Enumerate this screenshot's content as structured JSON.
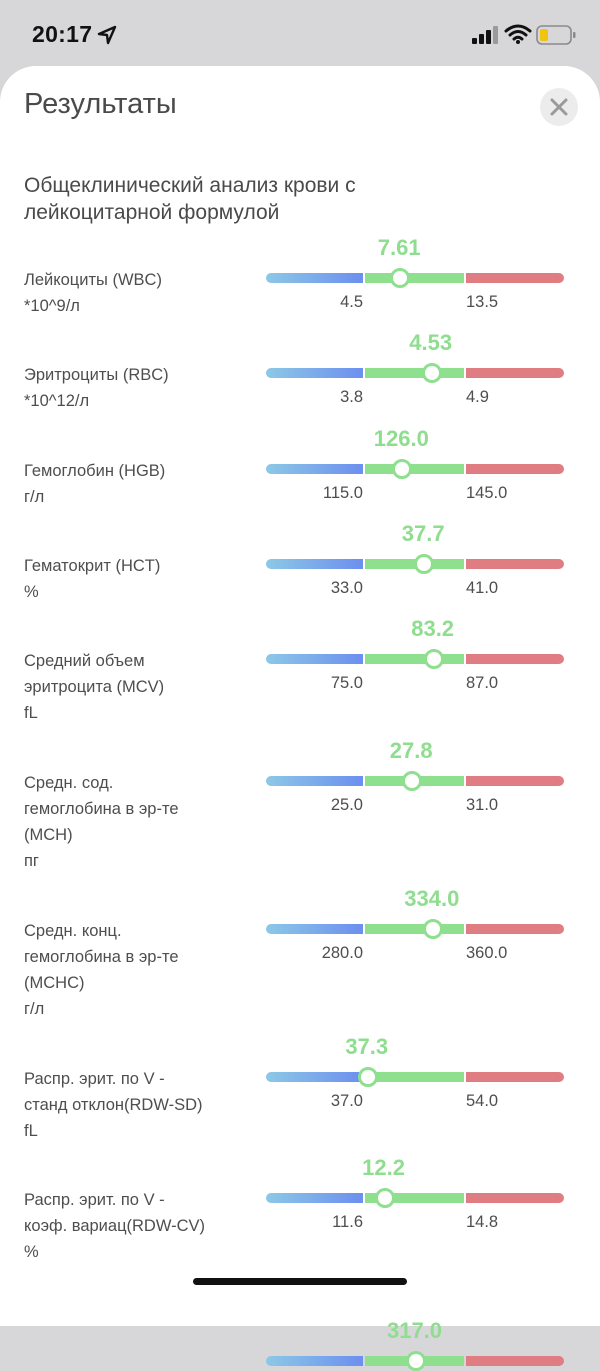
{
  "status": {
    "time": "20:17"
  },
  "sheet": {
    "title": "Результаты",
    "section_title": "Общеклинический анализ крови с лейкоцитарной формулой"
  },
  "colors": {
    "value_text": "#8fdd8f",
    "low_zone": "#6c8ff0",
    "normal_zone": "#8ee08e",
    "high_zone": "#e07d83"
  },
  "results": [
    {
      "label": [
        "Лейкоциты (WBC)",
        "*10^9/л"
      ],
      "value": "7.61",
      "low": "4.5",
      "high": "13.5"
    },
    {
      "label": [
        "Эритроциты (RBC)",
        "*10^12/л"
      ],
      "value": "4.53",
      "low": "3.8",
      "high": "4.9"
    },
    {
      "label": [
        "Гемоглобин (HGB)",
        "г/л"
      ],
      "value": "126.0",
      "low": "115.0",
      "high": "145.0"
    },
    {
      "label": [
        "Гематокрит (HCT)",
        "%"
      ],
      "value": "37.7",
      "low": "33.0",
      "high": "41.0"
    },
    {
      "label": [
        "Средний объем",
        "эритроцита (MCV)",
        "fL"
      ],
      "value": "83.2",
      "low": "75.0",
      "high": "87.0"
    },
    {
      "label": [
        "Средн. сод.",
        "гемоглобина в эр-те",
        "(MCH)",
        "пг"
      ],
      "value": "27.8",
      "low": "25.0",
      "high": "31.0"
    },
    {
      "label": [
        "Средн. конц.",
        "гемоглобина в эр-те",
        "(MCHC)",
        "г/л"
      ],
      "value": "334.0",
      "low": "280.0",
      "high": "360.0"
    },
    {
      "label": [
        "Распр. эрит. по V -",
        "станд отклон(RDW-SD)",
        "fL"
      ],
      "value": "37.3",
      "low": "37.0",
      "high": "54.0"
    },
    {
      "label": [
        "Распр. эрит. по V -",
        "коэф. вариац(RDW-CV)",
        "%"
      ],
      "value": "12.2",
      "low": "11.6",
      "high": "14.8"
    },
    {
      "label": [],
      "value": "317.0",
      "low": "",
      "high": ""
    }
  ]
}
